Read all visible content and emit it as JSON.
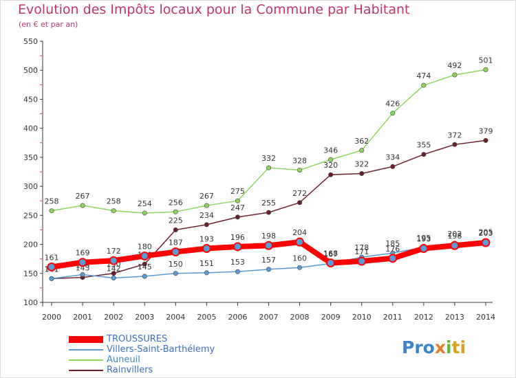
{
  "title": "Evolution des Impôts locaux pour la Commune par Habitant",
  "subtitle": "(en € et par an)",
  "logo": {
    "p1": "Pro",
    "p2": "x",
    "p3": "i",
    "p4": "ti"
  },
  "chart_data": {
    "type": "line",
    "title": "Evolution des Impôts locaux pour la Commune par Habitant",
    "subtitle": "(en € et par an)",
    "x": [
      "2000",
      "2001",
      "2002",
      "2003",
      "2004",
      "2005",
      "2006",
      "2007",
      "2008",
      "2009",
      "2010",
      "2011",
      "2012",
      "2013",
      "2014"
    ],
    "ylim": [
      100,
      550
    ],
    "yticks": [
      100,
      150,
      200,
      250,
      300,
      350,
      400,
      450,
      500,
      550
    ],
    "grid": false,
    "legend": "bottom-left",
    "series": [
      {
        "name": "Auneuil",
        "color": "#8cd65c",
        "values": [
          258,
          267,
          258,
          254,
          256,
          267,
          275,
          332,
          328,
          346,
          362,
          426,
          474,
          492,
          501
        ]
      },
      {
        "name": "Rainvillers",
        "color": "#6b1f2a",
        "values": [
          141,
          143,
          150,
          166,
          225,
          234,
          247,
          255,
          272,
          320,
          322,
          334,
          355,
          372,
          379
        ]
      },
      {
        "name": "Villers-Saint-Barthélemy",
        "color": "#5b9bd5",
        "values": [
          141,
          148,
          142,
          145,
          150,
          151,
          153,
          157,
          160,
          167,
          178,
          185,
          195,
          202,
          205
        ]
      },
      {
        "name": "TROUSSURES",
        "color": "#ff0000",
        "values": [
          161,
          169,
          172,
          180,
          187,
          193,
          196,
          198,
          204,
          168,
          171,
          176,
          193,
          198,
          203
        ]
      }
    ]
  }
}
